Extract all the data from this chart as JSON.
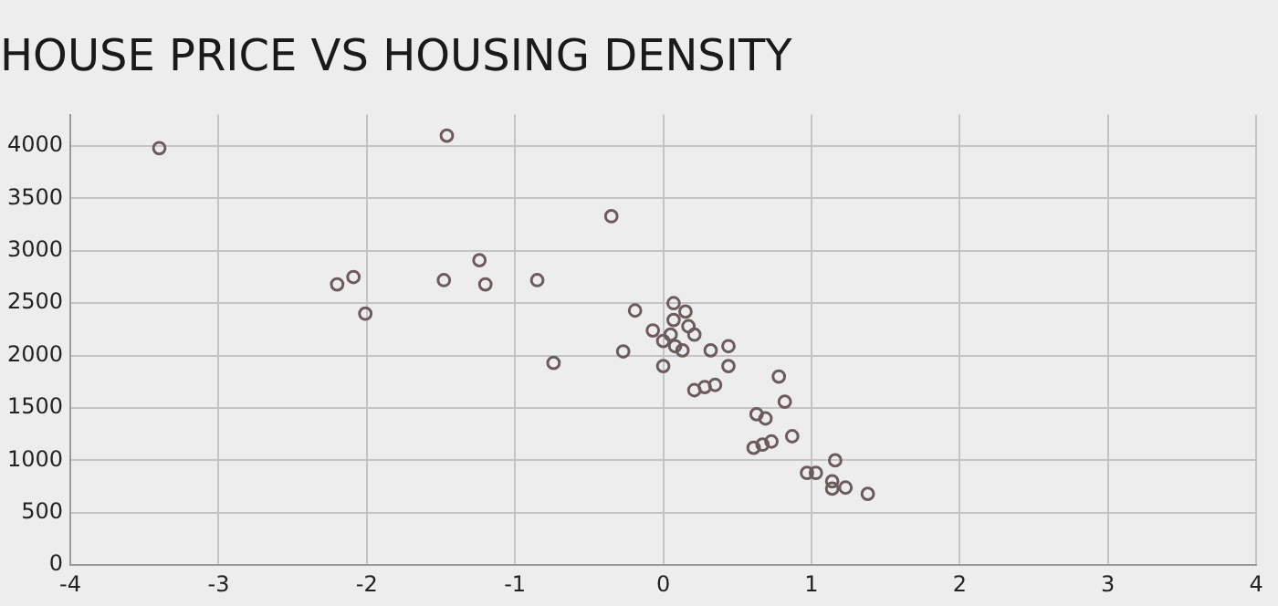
{
  "chart_data": {
    "type": "scatter",
    "title": "HOUSE PRICE VS HOUSING DENSITY",
    "x": [
      -3.4,
      -1.46,
      -2.2,
      -2.09,
      -2.01,
      -1.48,
      -1.24,
      -1.2,
      -0.85,
      -0.74,
      -0.35,
      -0.27,
      -0.19,
      -0.07,
      0.0,
      0.0,
      0.07,
      0.07,
      0.05,
      0.08,
      0.15,
      0.17,
      0.21,
      0.13,
      0.32,
      0.44,
      0.44,
      0.21,
      0.28,
      0.35,
      0.78,
      0.82,
      0.63,
      0.69,
      0.87,
      0.61,
      0.67,
      0.73,
      0.97,
      1.03,
      1.16,
      1.14,
      1.14,
      1.23,
      1.38
    ],
    "series": [
      {
        "color": "#6b5b5b",
        "values": [
          3980,
          4100,
          2680,
          2750,
          2400,
          2720,
          2910,
          2680,
          2720,
          1930,
          3330,
          2040,
          2430,
          2240,
          2140,
          1900,
          2500,
          2340,
          2200,
          2090,
          2420,
          2280,
          2200,
          2050,
          2050,
          2090,
          1900,
          1670,
          1700,
          1720,
          1800,
          1560,
          1440,
          1400,
          1230,
          1120,
          1150,
          1180,
          880,
          880,
          1000,
          800,
          730,
          740,
          680
        ]
      }
    ],
    "xlim": [
      -4,
      4
    ],
    "xticks": [
      -4,
      -3,
      -2,
      -1,
      0,
      1,
      2,
      3,
      4
    ],
    "ylim": [
      0,
      4300
    ],
    "yticks": [
      0,
      500,
      1000,
      1500,
      2000,
      2500,
      3000,
      3500,
      4000
    ],
    "grid": true,
    "marker": "circle",
    "legend": false
  }
}
